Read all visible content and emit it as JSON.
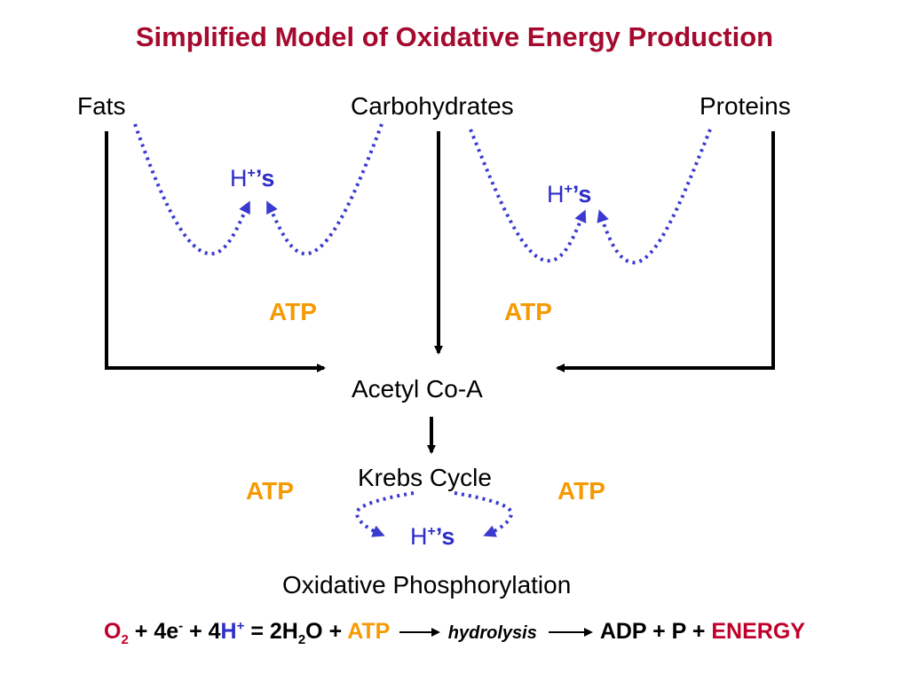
{
  "title": "Simplified Model of Oxidative Energy Production",
  "sources": {
    "fats": "Fats",
    "carbohydrates": "Carbohydrates",
    "proteins": "Proteins"
  },
  "hplus": {
    "h": "H",
    "plus": "+",
    "suffix": "’s"
  },
  "atp_label": "ATP",
  "acetyl": "Acetyl Co-A",
  "krebs": "Krebs Cycle",
  "oxphos": "Oxidative Phosphorylation",
  "equation": {
    "o2_o": "O",
    "o2_sub": "2",
    "plus1": " + 4e",
    "e_sup": "-",
    "plus2": " + 4",
    "h": "H",
    "h_sup": "+",
    "eq": " = 2H",
    "h2o_sub": "2",
    "o_plus": "O + ",
    "atp": "ATP",
    "hydrolysis": "hydrolysis",
    "adp": "ADP + P + ",
    "energy": "ENERGY"
  },
  "colors": {
    "title": "#a50a2e",
    "atp": "#f59a00",
    "hplus": "#2d2dc8",
    "dotted": "#3a3ad0",
    "energy": "#c0002b"
  }
}
